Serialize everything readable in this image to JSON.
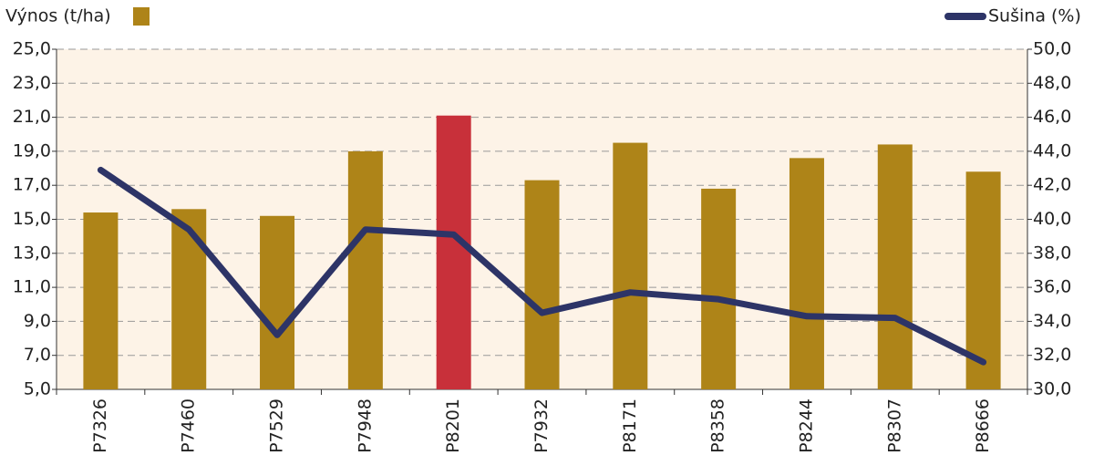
{
  "chart_data": {
    "type": "bar_line",
    "categories": [
      "P7326",
      "P7460",
      "P7529",
      "P7948",
      "P8201",
      "P7932",
      "P8171",
      "P8358",
      "P8244",
      "P8307",
      "P8666"
    ],
    "series": [
      {
        "name": "Výnos (t/ha)",
        "type": "bar",
        "color": "#ae8418",
        "colors": [
          "#ae8418",
          "#ae8418",
          "#ae8418",
          "#ae8418",
          "#c8303a",
          "#ae8418",
          "#ae8418",
          "#ae8418",
          "#ae8418",
          "#ae8418",
          "#ae8418"
        ],
        "values": [
          15.4,
          15.6,
          15.2,
          19.0,
          21.1,
          17.3,
          19.5,
          16.8,
          18.6,
          19.4,
          17.8
        ]
      },
      {
        "name": "Sušina (%)",
        "type": "line",
        "axis": "y2",
        "color": "#2d3467",
        "values": [
          42.9,
          39.4,
          33.2,
          39.4,
          39.1,
          34.5,
          35.7,
          35.3,
          34.3,
          34.2,
          31.6
        ]
      }
    ],
    "ylim": [
      5,
      25
    ],
    "yticks": [
      {
        "value": 5,
        "label": "5,0"
      },
      {
        "value": 7,
        "label": "7,0"
      },
      {
        "value": 9,
        "label": "9,0"
      },
      {
        "value": 11,
        "label": "11,0"
      },
      {
        "value": 13,
        "label": "13,0"
      },
      {
        "value": 15,
        "label": "15,0"
      },
      {
        "value": 17,
        "label": "17,0"
      },
      {
        "value": 19,
        "label": "19,0"
      },
      {
        "value": 21,
        "label": "21,0"
      },
      {
        "value": 23,
        "label": "23,0"
      },
      {
        "value": 25,
        "label": "25,0"
      }
    ],
    "y2lim": [
      30,
      50
    ],
    "y2ticks": [
      {
        "value": 30,
        "label": "30,0"
      },
      {
        "value": 32,
        "label": "32,0"
      },
      {
        "value": 34,
        "label": "34,0"
      },
      {
        "value": 36,
        "label": "36,0"
      },
      {
        "value": 38,
        "label": "38,0"
      },
      {
        "value": 40,
        "label": "40,0"
      },
      {
        "value": 42,
        "label": "42,0"
      },
      {
        "value": 44,
        "label": "44,0"
      },
      {
        "value": 46,
        "label": "46,0"
      },
      {
        "value": 48,
        "label": "48,0"
      },
      {
        "value": 50,
        "label": "50,0"
      }
    ],
    "grid": true,
    "background": "#fdf3e7"
  }
}
